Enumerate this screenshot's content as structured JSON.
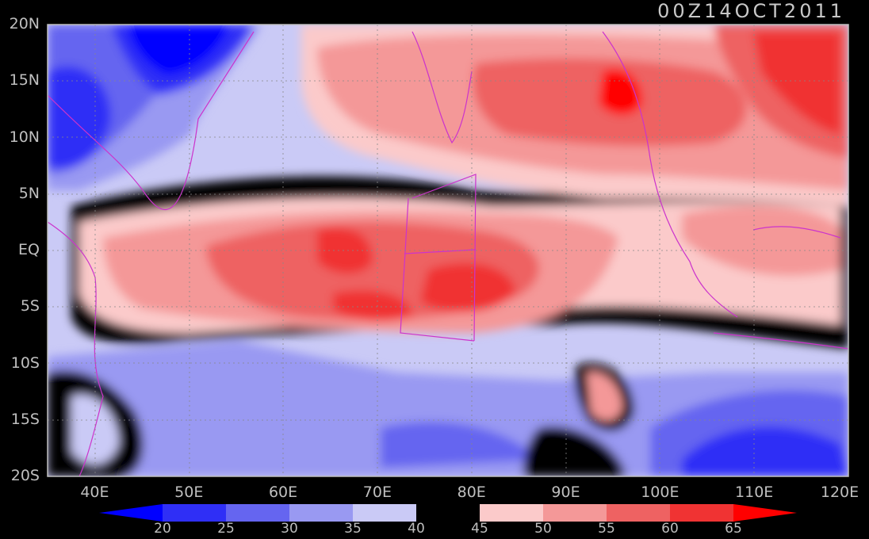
{
  "title": "00Z14OCT2011",
  "map": {
    "lon_range": [
      35,
      120
    ],
    "lat_range": [
      -20,
      20
    ],
    "x_ticks": [
      "40E",
      "50E",
      "60E",
      "70E",
      "80E",
      "90E",
      "100E",
      "110E",
      "120E"
    ],
    "y_ticks": [
      "20N",
      "15N",
      "10N",
      "5N",
      "EQ",
      "5S",
      "10S",
      "15S",
      "20S"
    ],
    "grid": true
  },
  "colorbar": {
    "levels": [
      "20",
      "25",
      "30",
      "35",
      "40",
      "45",
      "50",
      "55",
      "60",
      "65"
    ],
    "colors": [
      "#0000ff",
      "#2f2ff6",
      "#6565f0",
      "#9999f2",
      "#cacaf6",
      "#000000",
      "#fbcaca",
      "#f49898",
      "#ee6262",
      "#f03333",
      "#ff0000"
    ]
  }
}
